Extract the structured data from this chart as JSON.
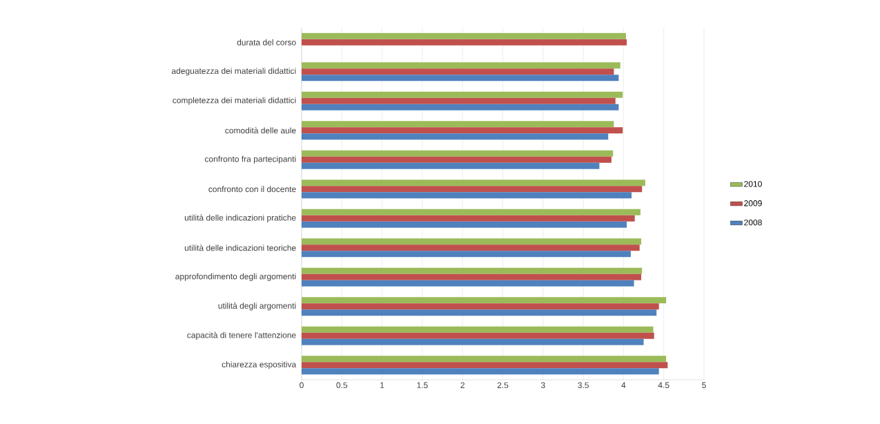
{
  "chart_data": {
    "type": "bar",
    "orientation": "horizontal",
    "categories": [
      "durata del corso",
      "adeguatezza dei materiali didattici",
      "completezza dei materiali didattici",
      "comodità delle aule",
      "confronto fra partecipanti",
      "confronto con il docente",
      "utilità delle indicazioni pratiche",
      "utilità delle indicazioni teoriche",
      "approfondimento degli argomenti",
      "utilità degli argomenti",
      "capacità di tenere l'attenzione",
      "chiarezza espositiva"
    ],
    "series": [
      {
        "name": "2010",
        "color": "#9bbb59",
        "values": [
          4.03,
          3.96,
          3.99,
          3.88,
          3.87,
          4.27,
          4.21,
          4.22,
          4.23,
          4.53,
          4.37,
          4.53
        ]
      },
      {
        "name": "2009",
        "color": "#c0504d",
        "values": [
          4.04,
          3.88,
          3.9,
          3.99,
          3.85,
          4.23,
          4.14,
          4.2,
          4.22,
          4.44,
          4.38,
          4.55
        ]
      },
      {
        "name": "2008",
        "color": "#4f81bd",
        "values": [
          null,
          3.94,
          3.94,
          3.81,
          3.7,
          4.1,
          4.04,
          4.09,
          4.13,
          4.41,
          4.25,
          4.44
        ]
      }
    ],
    "xlim": [
      0,
      5
    ],
    "xticks": [
      0,
      0.5,
      1,
      1.5,
      2,
      2.5,
      3,
      3.5,
      4,
      4.5,
      5
    ],
    "grid": "x",
    "legend": "right"
  }
}
